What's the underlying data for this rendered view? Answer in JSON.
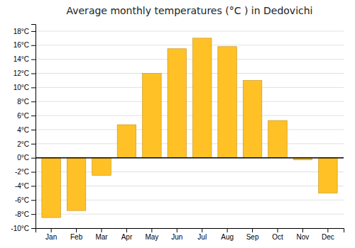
{
  "chart_data": {
    "type": "bar",
    "title": "Average monthly temperatures (°C ) in Dedovichi",
    "categories": [
      "Jan",
      "Feb",
      "Mar",
      "Apr",
      "May",
      "Jun",
      "Jul",
      "Aug",
      "Sep",
      "Oct",
      "Nov",
      "Dec"
    ],
    "values": [
      -8.5,
      -7.5,
      -2.5,
      4.7,
      12.0,
      15.5,
      17.0,
      15.8,
      11.0,
      5.3,
      -0.3,
      -5.0
    ],
    "color": "#FFC125",
    "ylim": [
      -10,
      19
    ],
    "yticks": [
      {
        "value": -10,
        "label": "-10°C"
      },
      {
        "value": -8,
        "label": "-8°C"
      },
      {
        "value": -6,
        "label": "-6°C"
      },
      {
        "value": -4,
        "label": "-4°C"
      },
      {
        "value": -2,
        "label": "-2°C"
      },
      {
        "value": 0,
        "label": "0°C"
      },
      {
        "value": 2,
        "label": "2°C"
      },
      {
        "value": 4,
        "label": "4°C"
      },
      {
        "value": 6,
        "label": "6°C"
      },
      {
        "value": 8,
        "label": "8°C"
      },
      {
        "value": 10,
        "label": "10°C"
      },
      {
        "value": 12,
        "label": "12°C"
      },
      {
        "value": 14,
        "label": "14°C"
      },
      {
        "value": 16,
        "label": "16°C"
      },
      {
        "value": 18,
        "label": "18°C"
      }
    ],
    "grid": true
  }
}
